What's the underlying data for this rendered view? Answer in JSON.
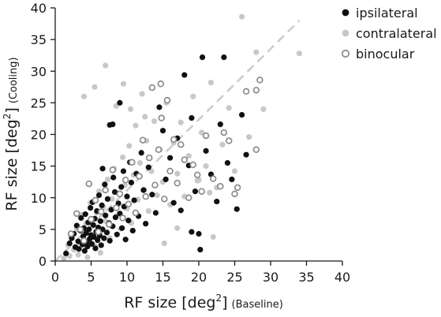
{
  "chart_data": {
    "type": "scatter",
    "xlabel": {
      "main": "RF size [deg",
      "sup": "2",
      "close": "]",
      "note": "(Baseline)"
    },
    "ylabel": {
      "main": "RF size [deg",
      "sup": "2",
      "close": "]",
      "note": "(Cooling)"
    },
    "xlim": [
      0,
      40
    ],
    "ylim": [
      0,
      40
    ],
    "xticks": [
      "0",
      "5",
      "10",
      "15",
      "20",
      "25",
      "30",
      "35",
      "40"
    ],
    "yticks": [
      "0",
      "5",
      "10",
      "15",
      "20",
      "25",
      "30",
      "35",
      "40"
    ],
    "grid": false,
    "legend_position": "top-right",
    "reference_line": {
      "style": "dashed",
      "color": "#cccccc",
      "from": [
        0,
        0
      ],
      "to": [
        34,
        38
      ]
    },
    "series": [
      {
        "name": "ipsilateral",
        "marker": "filled",
        "color": "#111111",
        "points": [
          [
            1.5,
            1.2
          ],
          [
            2.0,
            2.8
          ],
          [
            2.3,
            3.6
          ],
          [
            2.6,
            4.3
          ],
          [
            2.8,
            2.2
          ],
          [
            3.0,
            5.6
          ],
          [
            3.2,
            3.1
          ],
          [
            3.3,
            1.9
          ],
          [
            3.5,
            4.8
          ],
          [
            3.6,
            6.8
          ],
          [
            3.8,
            2.6
          ],
          [
            3.9,
            3.9
          ],
          [
            4.0,
            5.2
          ],
          [
            4.1,
            1.6
          ],
          [
            4.2,
            7.4
          ],
          [
            4.3,
            4.4
          ],
          [
            4.4,
            3.0
          ],
          [
            4.5,
            2.3
          ],
          [
            4.6,
            6.1
          ],
          [
            4.7,
            5.0
          ],
          [
            4.8,
            3.5
          ],
          [
            4.9,
            8.4
          ],
          [
            5.0,
            4.1
          ],
          [
            5.1,
            2.7
          ],
          [
            5.2,
            9.3
          ],
          [
            5.3,
            5.7
          ],
          [
            5.4,
            3.8
          ],
          [
            5.5,
            6.7
          ],
          [
            5.6,
            2.0
          ],
          [
            5.7,
            4.6
          ],
          [
            5.8,
            7.9
          ],
          [
            5.9,
            3.3
          ],
          [
            6.0,
            5.3
          ],
          [
            6.1,
            10.4
          ],
          [
            6.2,
            4.0
          ],
          [
            6.3,
            6.3
          ],
          [
            6.4,
            2.5
          ],
          [
            6.5,
            8.8
          ],
          [
            6.6,
            5.0
          ],
          [
            6.8,
            3.6
          ],
          [
            6.9,
            12.1
          ],
          [
            7.0,
            7.2
          ],
          [
            7.2,
            4.5
          ],
          [
            7.3,
            9.8
          ],
          [
            7.5,
            6.0
          ],
          [
            7.6,
            3.2
          ],
          [
            7.8,
            8.1
          ],
          [
            8.0,
            5.5
          ],
          [
            8.1,
            13.2
          ],
          [
            8.3,
            10.9
          ],
          [
            8.4,
            6.9
          ],
          [
            8.6,
            4.2
          ],
          [
            8.8,
            9.1
          ],
          [
            9.0,
            7.5
          ],
          [
            9.2,
            11.7
          ],
          [
            9.3,
            5.2
          ],
          [
            9.5,
            14.2
          ],
          [
            9.6,
            8.6
          ],
          [
            9.8,
            3.4
          ],
          [
            10.0,
            10.2
          ],
          [
            10.2,
            6.4
          ],
          [
            10.4,
            15.6
          ],
          [
            10.6,
            12.4
          ],
          [
            10.8,
            4.8
          ],
          [
            11.0,
            9.6
          ],
          [
            11.3,
            13.8
          ],
          [
            11.6,
            7.1
          ],
          [
            12.0,
            17.1
          ],
          [
            12.3,
            11.2
          ],
          [
            12.6,
            5.9
          ],
          [
            13.0,
            14.8
          ],
          [
            13.5,
            10.5
          ],
          [
            14.0,
            7.6
          ],
          [
            14.5,
            24.3
          ],
          [
            15.0,
            20.6
          ],
          [
            15.4,
            12.9
          ],
          [
            16.0,
            16.3
          ],
          [
            16.5,
            9.2
          ],
          [
            17.0,
            19.4
          ],
          [
            17.5,
            8.0
          ],
          [
            18.0,
            29.4
          ],
          [
            18.6,
            15.1
          ],
          [
            19.0,
            22.6
          ],
          [
            19.5,
            11.0
          ],
          [
            20.0,
            4.3
          ],
          [
            20.5,
            32.2
          ],
          [
            21.0,
            17.4
          ],
          [
            21.7,
            13.7
          ],
          [
            22.5,
            9.4
          ],
          [
            23.0,
            21.6
          ],
          [
            23.5,
            32.2
          ],
          [
            24.0,
            15.5
          ],
          [
            24.6,
            12.9
          ],
          [
            25.3,
            8.2
          ],
          [
            26.0,
            23.1
          ],
          [
            26.6,
            16.8
          ],
          [
            20.2,
            1.8
          ],
          [
            19.0,
            4.6
          ],
          [
            6.6,
            14.6
          ],
          [
            7.6,
            21.5
          ],
          [
            9.0,
            25.0
          ],
          [
            8.0,
            21.6
          ]
        ]
      },
      {
        "name": "contralateral",
        "marker": "filled",
        "color": "#c8c8c8",
        "points": [
          [
            1.8,
            2.5
          ],
          [
            2.2,
            3.9
          ],
          [
            2.6,
            1.8
          ],
          [
            3.0,
            5.0
          ],
          [
            3.4,
            2.9
          ],
          [
            3.7,
            7.3
          ],
          [
            4.0,
            4.2
          ],
          [
            4.3,
            6.0
          ],
          [
            4.6,
            3.1
          ],
          [
            4.9,
            9.2
          ],
          [
            5.2,
            5.5
          ],
          [
            5.5,
            2.4
          ],
          [
            5.8,
            7.6
          ],
          [
            6.1,
            11.0
          ],
          [
            6.4,
            4.7
          ],
          [
            6.7,
            8.5
          ],
          [
            7.0,
            6.3
          ],
          [
            7.3,
            12.9
          ],
          [
            7.6,
            3.6
          ],
          [
            7.9,
            9.8
          ],
          [
            8.2,
            14.6
          ],
          [
            8.5,
            7.1
          ],
          [
            8.8,
            10.7
          ],
          [
            9.1,
            5.1
          ],
          [
            9.4,
            16.4
          ],
          [
            9.7,
            12.0
          ],
          [
            10.0,
            8.3
          ],
          [
            10.3,
            18.2
          ],
          [
            10.6,
            6.0
          ],
          [
            10.9,
            13.6
          ],
          [
            11.2,
            21.4
          ],
          [
            11.5,
            9.7
          ],
          [
            11.8,
            15.5
          ],
          [
            12.1,
            26.4
          ],
          [
            12.4,
            11.3
          ],
          [
            12.7,
            19.0
          ],
          [
            13.0,
            7.9
          ],
          [
            13.4,
            14.2
          ],
          [
            13.8,
            22.1
          ],
          [
            14.2,
            10.4
          ],
          [
            14.6,
            17.6
          ],
          [
            15.0,
            12.5
          ],
          [
            15.5,
            25.0
          ],
          [
            16.0,
            8.9
          ],
          [
            16.5,
            18.7
          ],
          [
            17.0,
            13.8
          ],
          [
            17.5,
            21.9
          ],
          [
            18.0,
            10.2
          ],
          [
            18.6,
            16.6
          ],
          [
            19.2,
            26.0
          ],
          [
            19.8,
            12.7
          ],
          [
            20.4,
            20.3
          ],
          [
            21.0,
            15.0
          ],
          [
            21.7,
            28.2
          ],
          [
            22.5,
            11.6
          ],
          [
            23.3,
            18.4
          ],
          [
            24.2,
            24.2
          ],
          [
            25.0,
            14.2
          ],
          [
            26.0,
            38.6
          ],
          [
            27.0,
            19.6
          ],
          [
            28.0,
            33.0
          ],
          [
            29.0,
            24.0
          ],
          [
            34.0,
            32.8
          ],
          [
            4.0,
            26.0
          ],
          [
            5.5,
            27.5
          ],
          [
            7.0,
            30.9
          ],
          [
            8.5,
            24.5
          ],
          [
            9.5,
            28.0
          ],
          [
            10.5,
            24.0
          ],
          [
            12.5,
            22.8
          ],
          [
            1.2,
            0.4
          ],
          [
            2.0,
            0.8
          ],
          [
            3.2,
            1.0
          ],
          [
            4.5,
            0.6
          ],
          [
            6.3,
            1.3
          ],
          [
            15.2,
            2.8
          ],
          [
            17.0,
            5.2
          ],
          [
            22.0,
            3.8
          ],
          [
            21.5,
            10.8
          ],
          [
            20.0,
            12.8
          ]
        ]
      },
      {
        "name": "binocular",
        "marker": "open",
        "color": "#8c8c8c",
        "points": [
          [
            2.2,
            4.3
          ],
          [
            3.0,
            7.5
          ],
          [
            3.5,
            5.0
          ],
          [
            4.0,
            3.2
          ],
          [
            4.7,
            12.2
          ],
          [
            5.0,
            6.6
          ],
          [
            5.6,
            9.6
          ],
          [
            6.0,
            4.6
          ],
          [
            6.4,
            7.8
          ],
          [
            7.0,
            11.2
          ],
          [
            7.5,
            5.8
          ],
          [
            8.0,
            14.4
          ],
          [
            8.5,
            8.4
          ],
          [
            9.0,
            10.6
          ],
          [
            9.4,
            6.8
          ],
          [
            9.8,
            12.8
          ],
          [
            10.2,
            9.0
          ],
          [
            10.7,
            15.6
          ],
          [
            11.2,
            7.6
          ],
          [
            11.7,
            13.4
          ],
          [
            12.2,
            19.1
          ],
          [
            12.6,
            10.2
          ],
          [
            13.1,
            16.3
          ],
          [
            13.5,
            27.4
          ],
          [
            13.9,
            12.0
          ],
          [
            14.4,
            17.6
          ],
          [
            14.8,
            22.6
          ],
          [
            15.2,
            9.8
          ],
          [
            15.6,
            25.4
          ],
          [
            16.0,
            14.2
          ],
          [
            16.5,
            19.2
          ],
          [
            17.0,
            12.3
          ],
          [
            17.5,
            18.4
          ],
          [
            18.0,
            16.0
          ],
          [
            18.6,
            10.0
          ],
          [
            19.2,
            15.2
          ],
          [
            19.8,
            13.6
          ],
          [
            20.4,
            11.0
          ],
          [
            21.0,
            19.8
          ],
          [
            22.0,
            13.0
          ],
          [
            23.0,
            11.8
          ],
          [
            23.5,
            20.3
          ],
          [
            24.2,
            19.0
          ],
          [
            25.0,
            10.6
          ],
          [
            25.4,
            11.6
          ],
          [
            26.6,
            26.8
          ],
          [
            28.0,
            17.6
          ],
          [
            28.5,
            28.6
          ],
          [
            28.0,
            27.0
          ],
          [
            14.7,
            28.0
          ]
        ]
      }
    ]
  }
}
